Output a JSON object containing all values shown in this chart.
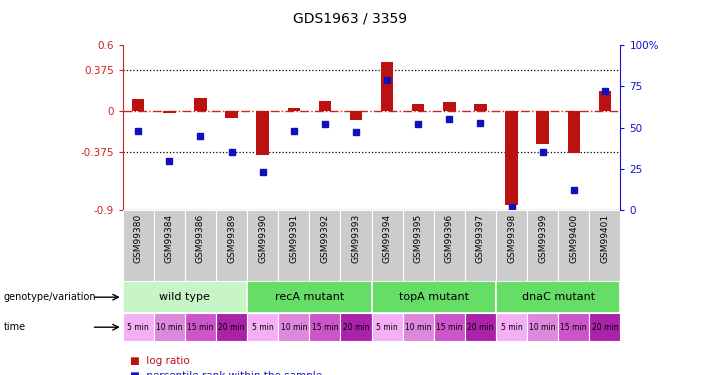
{
  "title": "GDS1963 / 3359",
  "samples": [
    "GSM99380",
    "GSM99384",
    "GSM99386",
    "GSM99389",
    "GSM99390",
    "GSM99391",
    "GSM99392",
    "GSM99393",
    "GSM99394",
    "GSM99395",
    "GSM99396",
    "GSM99397",
    "GSM99398",
    "GSM99399",
    "GSM99400",
    "GSM99401"
  ],
  "log_ratio": [
    0.11,
    -0.02,
    0.12,
    -0.06,
    -0.4,
    0.03,
    0.09,
    -0.08,
    0.45,
    0.06,
    0.08,
    0.06,
    -0.85,
    -0.3,
    -0.38,
    0.18
  ],
  "percentile": [
    48,
    30,
    45,
    35,
    23,
    48,
    52,
    47,
    79,
    52,
    55,
    53,
    2,
    35,
    12,
    72
  ],
  "genotype_groups": [
    {
      "label": "wild type",
      "start": 0,
      "end": 3,
      "color": "#c8f5c8"
    },
    {
      "label": "recA mutant",
      "start": 4,
      "end": 7,
      "color": "#66dd66"
    },
    {
      "label": "topA mutant",
      "start": 8,
      "end": 11,
      "color": "#66dd66"
    },
    {
      "label": "dnaC mutant",
      "start": 12,
      "end": 15,
      "color": "#66dd66"
    }
  ],
  "time_colors_cycle": [
    "#f5b0f5",
    "#dd88dd",
    "#cc55cc",
    "#aa22aa"
  ],
  "ylim_left": [
    -0.9,
    0.6
  ],
  "ylim_right": [
    0,
    100
  ],
  "hlines": [
    0.375,
    -0.375
  ],
  "bar_color": "#bb1111",
  "square_color": "#1111bb",
  "zero_line_color": "#cc2222",
  "label_color_left": "#cc2222",
  "label_color_right": "#1111cc",
  "background_color": "#ffffff",
  "sample_label_bg": "#cccccc"
}
